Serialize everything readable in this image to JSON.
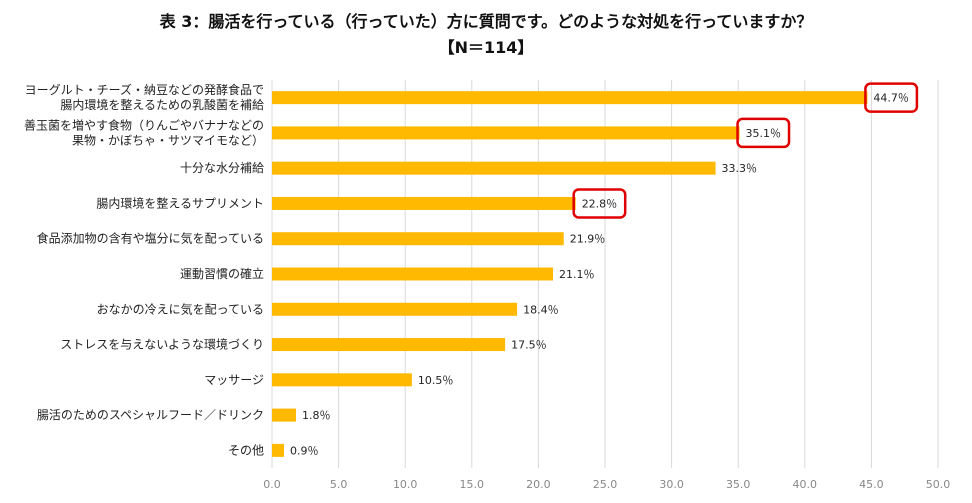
{
  "chart_data": {
    "type": "bar",
    "orientation": "horizontal",
    "title": "表 3：腸活を行っている（行っていた）方に質問です。どのような対処を行っていますか？",
    "subtitle": "【N＝114】",
    "categories": [
      [
        "ヨーグルト・チーズ・納豆などの発酵食品で",
        "腸内環境を整えるための乳酸菌を補給"
      ],
      [
        "善玉菌を増やす食物（りんごやバナナなどの",
        "果物・かぼちゃ・サツマイモなど）"
      ],
      [
        "十分な水分補給"
      ],
      [
        "腸内環境を整えるサプリメント"
      ],
      [
        "食品添加物の含有や塩分に気を配っている"
      ],
      [
        "運動習慣の確立"
      ],
      [
        "おなかの冷えに気を配っている"
      ],
      [
        "ストレスを与えないような環境づくり"
      ],
      [
        "マッサージ"
      ],
      [
        "腸活のためのスペシャルフード／ドリンク"
      ],
      [
        "その他"
      ]
    ],
    "values": [
      44.7,
      35.1,
      33.3,
      22.8,
      21.9,
      21.1,
      18.4,
      17.5,
      10.5,
      1.8,
      0.9
    ],
    "data_labels": [
      "44.7％",
      "35.1％",
      "33.3％",
      "22.8％",
      "21.9％",
      "21.1％",
      "18.4％",
      "17.5％",
      "10.5％",
      "1.8％",
      "0.9％"
    ],
    "highlighted": [
      0,
      1,
      3
    ],
    "xlim": [
      0,
      50
    ],
    "xticks": [
      "0.0",
      "5.0",
      "10.0",
      "15.0",
      "20.0",
      "25.0",
      "30.0",
      "35.0",
      "40.0",
      "45.0",
      "50.0"
    ],
    "grid": true,
    "legend": "none",
    "colors": {
      "bar": "#FFB900",
      "highlight": "#E00000",
      "grid": "#d9d9d9"
    }
  }
}
